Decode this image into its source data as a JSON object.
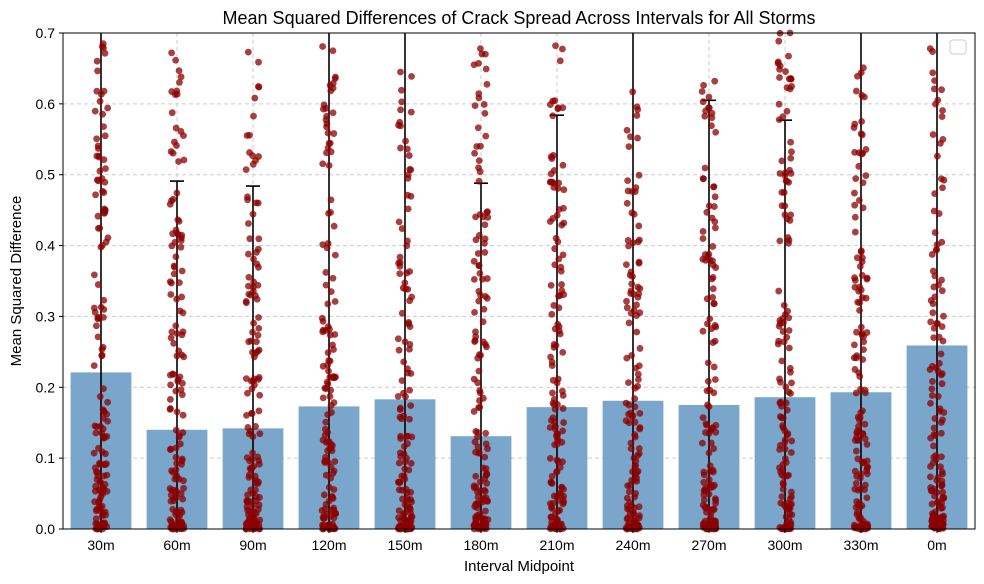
{
  "chart_data": {
    "type": "bar",
    "title": "Mean Squared Differences of Crack Spread Across Intervals for All Storms",
    "xlabel": "Interval Midpoint",
    "ylabel": "Mean Squared Difference",
    "categories": [
      "30m",
      "60m",
      "90m",
      "120m",
      "150m",
      "180m",
      "210m",
      "240m",
      "270m",
      "300m",
      "330m",
      "0m"
    ],
    "values": [
      0.221,
      0.14,
      0.142,
      0.173,
      0.183,
      0.131,
      0.172,
      0.181,
      0.175,
      0.186,
      0.193,
      0.259
    ],
    "error_upper": [
      0.7,
      0.491,
      0.484,
      0.7,
      0.7,
      0.488,
      0.584,
      0.7,
      0.605,
      0.577,
      0.7,
      0.7
    ],
    "ylim": [
      0,
      0.7
    ],
    "yticks": [
      0.0,
      0.1,
      0.2,
      0.3,
      0.4,
      0.5,
      0.6,
      0.7
    ],
    "ytick_labels": [
      "0.0",
      "0.1",
      "0.2",
      "0.3",
      "0.4",
      "0.5",
      "0.6",
      "0.7"
    ],
    "grid": true,
    "legend": "top-right (empty)",
    "colors": {
      "bar": "#7aa6cb",
      "points": "#8b0000",
      "errorbar": "#000000",
      "grid": "#cccccc"
    },
    "scatter_points_per_category": 140,
    "scatter_point_max_values": [
      0.685,
      0.672,
      0.673,
      0.681,
      0.645,
      0.678,
      0.682,
      0.617,
      0.632,
      0.7,
      0.651,
      0.678
    ]
  }
}
